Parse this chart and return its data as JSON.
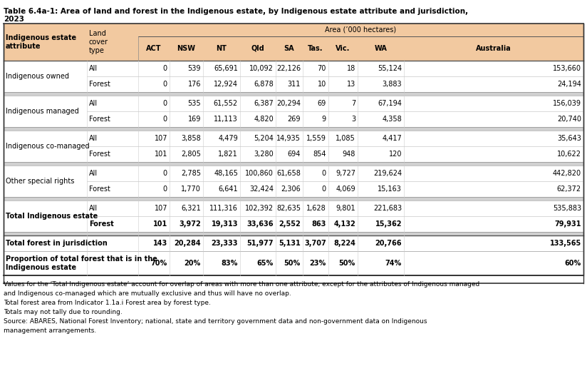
{
  "title_line1": "Table 6.4a-1: Area of land and forest in the Indigenous estate, by Indigenous estate attribute and jurisdiction,",
  "title_line2": "2023",
  "area_header": "Area (’000 hectares)",
  "jurisdictions": [
    "ACT",
    "NSW",
    "NT",
    "Qld",
    "SA",
    "Tas.",
    "Vic.",
    "WA",
    "Australia"
  ],
  "groups": [
    {
      "name": "Indigenous owned",
      "rows": [
        {
          "type": "All",
          "vals": [
            "0",
            "539",
            "65,691",
            "10,092",
            "22,126",
            "70",
            "18",
            "55,124",
            "153,660"
          ],
          "bold": false
        },
        {
          "type": "Forest",
          "vals": [
            "0",
            "176",
            "12,924",
            "6,878",
            "311",
            "10",
            "13",
            "3,883",
            "24,194"
          ],
          "bold": false
        }
      ]
    },
    {
      "name": "Indigenous managed",
      "rows": [
        {
          "type": "All",
          "vals": [
            "0",
            "535",
            "61,552",
            "6,387",
            "20,294",
            "69",
            "7",
            "67,194",
            "156,039"
          ],
          "bold": false
        },
        {
          "type": "Forest",
          "vals": [
            "0",
            "169",
            "11,113",
            "4,820",
            "269",
            "9",
            "3",
            "4,358",
            "20,740"
          ],
          "bold": false
        }
      ]
    },
    {
      "name": "Indigenous co-managed",
      "rows": [
        {
          "type": "All",
          "vals": [
            "107",
            "3,858",
            "4,479",
            "5,204",
            "14,935",
            "1,559",
            "1,085",
            "4,417",
            "35,643"
          ],
          "bold": false
        },
        {
          "type": "Forest",
          "vals": [
            "101",
            "2,805",
            "1,821",
            "3,280",
            "694",
            "854",
            "948",
            "120",
            "10,622"
          ],
          "bold": false
        }
      ]
    },
    {
      "name": "Other special rights",
      "rows": [
        {
          "type": "All",
          "vals": [
            "0",
            "2,785",
            "48,165",
            "100,860",
            "61,658",
            "0",
            "9,727",
            "219,624",
            "442,820"
          ],
          "bold": false
        },
        {
          "type": "Forest",
          "vals": [
            "0",
            "1,770",
            "6,641",
            "32,424",
            "2,306",
            "0",
            "4,069",
            "15,163",
            "62,372"
          ],
          "bold": false
        }
      ]
    },
    {
      "name": "Total Indigenous estate",
      "rows": [
        {
          "type": "All",
          "vals": [
            "107",
            "6,321",
            "111,316",
            "102,392",
            "82,635",
            "1,628",
            "9,801",
            "221,683",
            "535,883"
          ],
          "bold": false
        },
        {
          "type": "Forest",
          "vals": [
            "101",
            "3,972",
            "19,313",
            "33,636",
            "2,552",
            "863",
            "4,132",
            "15,362",
            "79,931"
          ],
          "bold": true
        }
      ]
    }
  ],
  "summary1": {
    "label": "Total forest in jurisdiction",
    "vals": [
      "143",
      "20,284",
      "23,333",
      "51,977",
      "5,131",
      "3,707",
      "8,224",
      "20,766",
      "133,565"
    ]
  },
  "summary2": {
    "label": "Proportion of total forest that is in the\nIndigenous estate",
    "vals": [
      "70%",
      "20%",
      "83%",
      "65%",
      "50%",
      "23%",
      "50%",
      "74%",
      "60%"
    ]
  },
  "footnotes": [
    "Values for the ‘Total Indigenous estate’ account for overlap of areas with more than one attribute, except for the attributes of Indigenous managed",
    "and Indigenous co-managed which are mutually exclusive and thus will have no overlap.",
    "Total forest area from Indicator 1.1a.i Forest area by forest type.",
    "Totals may not tally due to rounding.",
    "Source: ABARES, National Forest Inventory; national, state and territory government data and non-government data on Indigenous",
    "management arrangements."
  ],
  "header_bg": "#F2C9A0",
  "gap_bg": "#D0D0D0",
  "white_bg": "#FFFFFF",
  "border_dark": "#555555",
  "border_light": "#AAAAAA"
}
